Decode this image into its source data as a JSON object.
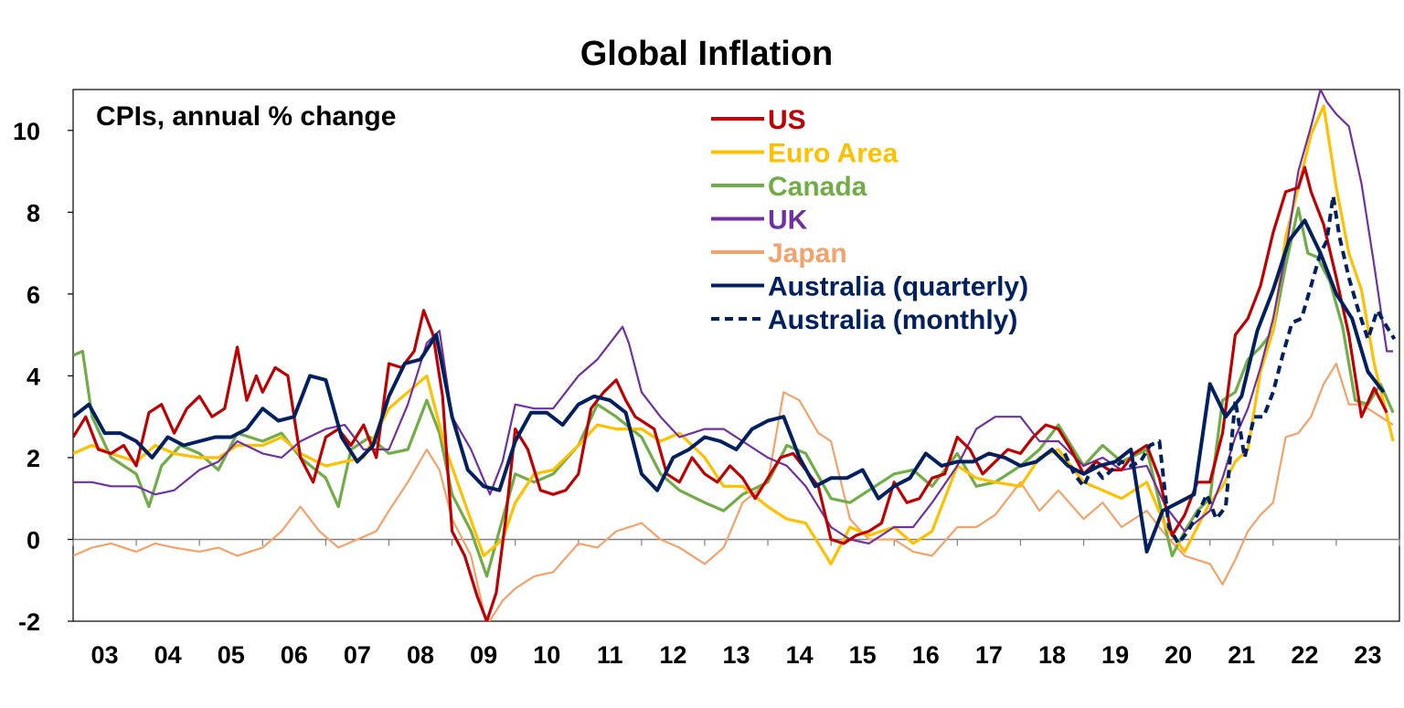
{
  "chart_data": {
    "type": "line",
    "title": "Global Inflation",
    "subtitle": "CPIs, annual % change",
    "xlabel": "",
    "ylabel": "",
    "xlim": [
      2003.0,
      2024.0
    ],
    "ylim": [
      -2,
      11
    ],
    "yticks": [
      -2,
      0,
      2,
      4,
      6,
      8,
      10
    ],
    "x_tick_labels": [
      "03",
      "04",
      "05",
      "06",
      "07",
      "08",
      "09",
      "10",
      "11",
      "12",
      "13",
      "14",
      "15",
      "16",
      "17",
      "18",
      "19",
      "20",
      "21",
      "22",
      "23"
    ],
    "x_tick_positions": [
      2003.5,
      2004.5,
      2005.5,
      2006.5,
      2007.5,
      2008.5,
      2009.5,
      2010.5,
      2011.5,
      2012.5,
      2013.5,
      2014.5,
      2015.5,
      2016.5,
      2017.5,
      2018.5,
      2019.5,
      2020.5,
      2021.5,
      2022.5,
      2023.5
    ],
    "zero_line": true,
    "grid": false,
    "legend_position": "top-center",
    "series": [
      {
        "name": "US",
        "color": "#C00000",
        "style": "solid",
        "x": [
          2003.0,
          2003.2,
          2003.4,
          2003.6,
          2003.8,
          2004.0,
          2004.2,
          2004.4,
          2004.6,
          2004.8,
          2005.0,
          2005.2,
          2005.4,
          2005.6,
          2005.75,
          2005.9,
          2006.0,
          2006.2,
          2006.4,
          2006.6,
          2006.8,
          2007.0,
          2007.2,
          2007.4,
          2007.6,
          2007.8,
          2008.0,
          2008.2,
          2008.4,
          2008.55,
          2008.7,
          2008.85,
          2009.0,
          2009.2,
          2009.4,
          2009.55,
          2009.7,
          2009.85,
          2010.0,
          2010.2,
          2010.4,
          2010.6,
          2010.8,
          2011.0,
          2011.2,
          2011.4,
          2011.6,
          2011.75,
          2011.9,
          2012.0,
          2012.2,
          2012.4,
          2012.6,
          2012.8,
          2013.0,
          2013.2,
          2013.4,
          2013.6,
          2013.8,
          2014.0,
          2014.2,
          2014.4,
          2014.6,
          2014.8,
          2015.0,
          2015.2,
          2015.4,
          2015.6,
          2015.8,
          2016.0,
          2016.2,
          2016.4,
          2016.6,
          2016.8,
          2017.0,
          2017.2,
          2017.4,
          2017.6,
          2017.8,
          2018.0,
          2018.2,
          2018.4,
          2018.6,
          2018.8,
          2019.0,
          2019.2,
          2019.4,
          2019.6,
          2019.8,
          2020.0,
          2020.2,
          2020.4,
          2020.6,
          2020.8,
          2021.0,
          2021.2,
          2021.4,
          2021.6,
          2021.8,
          2022.0,
          2022.2,
          2022.4,
          2022.5,
          2022.6,
          2022.8,
          2023.0,
          2023.2,
          2023.4,
          2023.6,
          2023.8
        ],
        "values": [
          2.5,
          3.0,
          2.2,
          2.1,
          2.3,
          1.8,
          3.1,
          3.3,
          2.6,
          3.2,
          3.5,
          3.0,
          3.2,
          4.7,
          3.4,
          4.0,
          3.6,
          4.2,
          4.0,
          2.0,
          1.4,
          2.5,
          2.7,
          2.3,
          2.8,
          2.0,
          4.3,
          4.2,
          4.6,
          5.6,
          5.0,
          3.5,
          0.2,
          -0.4,
          -1.4,
          -2.0,
          -1.3,
          0.5,
          2.7,
          2.2,
          1.2,
          1.1,
          1.2,
          1.6,
          3.2,
          3.6,
          3.9,
          3.4,
          3.0,
          2.9,
          2.7,
          1.6,
          1.4,
          2.0,
          1.6,
          1.4,
          1.8,
          1.5,
          1.0,
          1.5,
          2.0,
          2.1,
          1.7,
          1.3,
          0.0,
          -0.1,
          0.1,
          0.2,
          0.4,
          1.4,
          0.9,
          1.0,
          1.5,
          1.6,
          2.5,
          2.2,
          1.6,
          1.9,
          2.2,
          2.1,
          2.5,
          2.8,
          2.7,
          2.2,
          1.6,
          1.9,
          1.7,
          1.7,
          2.1,
          2.3,
          1.5,
          0.1,
          0.6,
          1.4,
          1.4,
          2.6,
          5.0,
          5.4,
          6.2,
          7.5,
          8.5,
          8.6,
          9.1,
          8.5,
          7.7,
          6.4,
          5.0,
          3.0,
          3.7,
          3.1
        ]
      },
      {
        "name": "Euro Area",
        "color": "#FFC000",
        "style": "solid",
        "x": [
          2003.0,
          2003.3,
          2003.6,
          2004.0,
          2004.3,
          2004.6,
          2005.0,
          2005.3,
          2005.6,
          2006.0,
          2006.3,
          2006.6,
          2007.0,
          2007.3,
          2007.6,
          2008.0,
          2008.3,
          2008.6,
          2008.9,
          2009.2,
          2009.5,
          2009.8,
          2010.0,
          2010.3,
          2010.6,
          2011.0,
          2011.3,
          2011.6,
          2012.0,
          2012.3,
          2012.6,
          2013.0,
          2013.3,
          2013.6,
          2014.0,
          2014.3,
          2014.6,
          2015.0,
          2015.3,
          2015.6,
          2016.0,
          2016.3,
          2016.6,
          2017.0,
          2017.3,
          2017.6,
          2018.0,
          2018.3,
          2018.6,
          2019.0,
          2019.3,
          2019.6,
          2020.0,
          2020.3,
          2020.6,
          2021.0,
          2021.2,
          2021.4,
          2021.6,
          2021.8,
          2022.0,
          2022.2,
          2022.4,
          2022.6,
          2022.8,
          2023.0,
          2023.2,
          2023.4,
          2023.6,
          2023.9
        ],
        "values": [
          2.1,
          2.3,
          2.1,
          1.9,
          2.3,
          2.1,
          2.0,
          2.0,
          2.3,
          2.3,
          2.5,
          2.1,
          1.8,
          1.9,
          2.0,
          3.2,
          3.6,
          4.0,
          2.2,
          0.9,
          -0.4,
          0.0,
          0.9,
          1.6,
          1.7,
          2.3,
          2.8,
          2.7,
          2.7,
          2.4,
          2.6,
          2.0,
          1.3,
          1.3,
          0.8,
          0.5,
          0.4,
          -0.6,
          0.3,
          0.1,
          0.3,
          -0.1,
          0.2,
          1.8,
          1.5,
          1.4,
          1.3,
          2.0,
          2.2,
          1.4,
          1.2,
          1.0,
          1.4,
          0.3,
          -0.3,
          0.9,
          1.3,
          1.9,
          2.2,
          4.1,
          5.1,
          7.4,
          8.6,
          9.9,
          10.6,
          8.6,
          7.0,
          6.1,
          4.3,
          2.4
        ]
      },
      {
        "name": "Canada",
        "color": "#70AD47",
        "style": "solid",
        "x": [
          2003.0,
          2003.15,
          2003.3,
          2003.6,
          2004.0,
          2004.2,
          2004.4,
          2004.7,
          2005.0,
          2005.3,
          2005.6,
          2006.0,
          2006.3,
          2006.6,
          2007.0,
          2007.2,
          2007.4,
          2007.7,
          2008.0,
          2008.3,
          2008.6,
          2008.8,
          2009.0,
          2009.3,
          2009.55,
          2009.8,
          2010.0,
          2010.3,
          2010.6,
          2011.0,
          2011.3,
          2011.6,
          2012.0,
          2012.3,
          2012.6,
          2013.0,
          2013.3,
          2013.6,
          2014.0,
          2014.3,
          2014.6,
          2015.0,
          2015.3,
          2015.6,
          2016.0,
          2016.3,
          2016.6,
          2017.0,
          2017.3,
          2017.6,
          2018.0,
          2018.3,
          2018.6,
          2019.0,
          2019.3,
          2019.6,
          2020.0,
          2020.2,
          2020.4,
          2020.6,
          2020.8,
          2021.0,
          2021.2,
          2021.4,
          2021.6,
          2021.8,
          2022.0,
          2022.2,
          2022.4,
          2022.55,
          2022.7,
          2022.9,
          2023.1,
          2023.3,
          2023.5,
          2023.7,
          2023.9
        ],
        "values": [
          4.5,
          4.6,
          3.0,
          2.0,
          1.6,
          0.8,
          1.8,
          2.3,
          2.1,
          1.7,
          2.6,
          2.4,
          2.6,
          2.0,
          1.5,
          0.8,
          2.2,
          2.5,
          2.1,
          2.2,
          3.4,
          2.6,
          1.1,
          0.2,
          -0.9,
          0.5,
          1.6,
          1.4,
          1.6,
          2.3,
          3.3,
          3.0,
          2.5,
          1.6,
          1.2,
          0.9,
          0.7,
          1.1,
          1.4,
          2.3,
          2.1,
          1.0,
          0.9,
          1.2,
          1.6,
          1.7,
          1.3,
          2.1,
          1.3,
          1.4,
          1.8,
          2.2,
          2.8,
          1.8,
          2.3,
          1.9,
          2.2,
          0.9,
          -0.4,
          0.2,
          0.7,
          1.0,
          3.4,
          3.6,
          4.4,
          4.7,
          5.1,
          6.7,
          8.1,
          7.0,
          6.9,
          6.3,
          5.2,
          3.4,
          3.3,
          3.8,
          3.1
        ]
      },
      {
        "name": "UK",
        "color": "#7030A0",
        "style": "solid",
        "x": [
          2003.0,
          2003.3,
          2003.6,
          2004.0,
          2004.3,
          2004.6,
          2005.0,
          2005.3,
          2005.6,
          2006.0,
          2006.3,
          2006.6,
          2007.0,
          2007.3,
          2007.6,
          2008.0,
          2008.3,
          2008.6,
          2008.8,
          2009.0,
          2009.3,
          2009.6,
          2009.8,
          2010.0,
          2010.3,
          2010.6,
          2011.0,
          2011.3,
          2011.5,
          2011.7,
          2011.8,
          2012.0,
          2012.3,
          2012.6,
          2013.0,
          2013.3,
          2013.6,
          2014.0,
          2014.3,
          2014.6,
          2015.0,
          2015.3,
          2015.6,
          2016.0,
          2016.3,
          2016.6,
          2017.0,
          2017.3,
          2017.6,
          2018.0,
          2018.3,
          2018.6,
          2019.0,
          2019.3,
          2019.6,
          2020.0,
          2020.3,
          2020.6,
          2021.0,
          2021.2,
          2021.4,
          2021.6,
          2021.8,
          2022.0,
          2022.2,
          2022.4,
          2022.6,
          2022.75,
          2022.85,
          2023.0,
          2023.2,
          2023.4,
          2023.6,
          2023.8,
          2023.9
        ],
        "values": [
          1.4,
          1.4,
          1.3,
          1.3,
          1.1,
          1.2,
          1.7,
          1.9,
          2.4,
          2.1,
          2.0,
          2.4,
          2.7,
          2.8,
          2.2,
          2.2,
          3.3,
          4.8,
          5.1,
          3.0,
          2.2,
          1.1,
          1.9,
          3.3,
          3.2,
          3.2,
          4.0,
          4.4,
          4.8,
          5.2,
          4.8,
          3.6,
          3.0,
          2.5,
          2.7,
          2.7,
          2.4,
          2.0,
          1.8,
          1.3,
          0.3,
          0.0,
          -0.1,
          0.3,
          0.3,
          0.9,
          1.8,
          2.7,
          3.0,
          3.0,
          2.4,
          2.4,
          1.8,
          2.0,
          1.7,
          1.8,
          0.8,
          0.2,
          0.7,
          1.5,
          2.5,
          3.2,
          4.2,
          5.4,
          7.0,
          9.0,
          10.1,
          11.0,
          10.7,
          10.4,
          10.1,
          8.7,
          6.7,
          4.6,
          4.6
        ]
      },
      {
        "name": "Japan",
        "color": "#F4A26A",
        "style": "solid",
        "x": [
          2003.0,
          2003.3,
          2003.6,
          2004.0,
          2004.3,
          2004.6,
          2005.0,
          2005.3,
          2005.6,
          2006.0,
          2006.3,
          2006.6,
          2006.9,
          2007.2,
          2007.5,
          2007.8,
          2008.0,
          2008.3,
          2008.6,
          2008.8,
          2009.0,
          2009.3,
          2009.55,
          2009.8,
          2010.0,
          2010.3,
          2010.6,
          2011.0,
          2011.3,
          2011.6,
          2012.0,
          2012.3,
          2012.6,
          2013.0,
          2013.3,
          2013.6,
          2014.0,
          2014.25,
          2014.5,
          2014.8,
          2015.0,
          2015.3,
          2015.6,
          2016.0,
          2016.3,
          2016.6,
          2017.0,
          2017.3,
          2017.6,
          2018.0,
          2018.3,
          2018.6,
          2019.0,
          2019.3,
          2019.6,
          2020.0,
          2020.3,
          2020.6,
          2021.0,
          2021.2,
          2021.4,
          2021.6,
          2021.8,
          2022.0,
          2022.2,
          2022.4,
          2022.6,
          2022.8,
          2023.0,
          2023.2,
          2023.4,
          2023.6,
          2023.9
        ],
        "values": [
          -0.4,
          -0.2,
          -0.1,
          -0.3,
          -0.1,
          -0.2,
          -0.3,
          -0.2,
          -0.4,
          -0.2,
          0.2,
          0.8,
          0.2,
          -0.2,
          0.0,
          0.2,
          0.7,
          1.4,
          2.2,
          1.7,
          0.5,
          -0.4,
          -2.1,
          -1.5,
          -1.2,
          -0.9,
          -0.8,
          -0.1,
          -0.2,
          0.2,
          0.4,
          0.0,
          -0.2,
          -0.6,
          -0.2,
          0.9,
          1.4,
          3.6,
          3.4,
          2.6,
          2.4,
          0.5,
          0.0,
          0.0,
          -0.3,
          -0.4,
          0.3,
          0.3,
          0.6,
          1.4,
          0.7,
          1.2,
          0.5,
          0.9,
          0.3,
          0.7,
          0.1,
          -0.4,
          -0.6,
          -1.1,
          -0.5,
          0.2,
          0.6,
          0.9,
          2.5,
          2.6,
          3.0,
          3.8,
          4.3,
          3.3,
          3.3,
          3.1,
          2.8
        ]
      },
      {
        "name": "Australia (quarterly)",
        "color": "#002060",
        "style": "solid",
        "x": [
          2003.0,
          2003.25,
          2003.5,
          2003.75,
          2004.0,
          2004.25,
          2004.5,
          2004.75,
          2005.0,
          2005.25,
          2005.5,
          2005.75,
          2006.0,
          2006.25,
          2006.5,
          2006.75,
          2007.0,
          2007.25,
          2007.5,
          2007.75,
          2008.0,
          2008.25,
          2008.5,
          2008.75,
          2009.0,
          2009.25,
          2009.5,
          2009.75,
          2010.0,
          2010.25,
          2010.5,
          2010.75,
          2011.0,
          2011.25,
          2011.5,
          2011.75,
          2012.0,
          2012.25,
          2012.5,
          2012.75,
          2013.0,
          2013.25,
          2013.5,
          2013.75,
          2014.0,
          2014.25,
          2014.5,
          2014.75,
          2015.0,
          2015.25,
          2015.5,
          2015.75,
          2016.0,
          2016.25,
          2016.5,
          2016.75,
          2017.0,
          2017.25,
          2017.5,
          2017.75,
          2018.0,
          2018.25,
          2018.5,
          2018.75,
          2019.0,
          2019.25,
          2019.5,
          2019.75,
          2020.0,
          2020.25,
          2020.5,
          2020.75,
          2021.0,
          2021.25,
          2021.5,
          2021.75,
          2022.0,
          2022.25,
          2022.5,
          2022.75,
          2023.0,
          2023.25,
          2023.5,
          2023.75
        ],
        "values": [
          3.0,
          3.3,
          2.6,
          2.6,
          2.4,
          2.0,
          2.5,
          2.3,
          2.4,
          2.5,
          2.5,
          2.7,
          3.2,
          2.9,
          3.0,
          4.0,
          3.9,
          2.5,
          1.9,
          2.3,
          3.5,
          4.3,
          4.4,
          5.0,
          3.0,
          1.7,
          1.3,
          1.2,
          2.4,
          3.1,
          3.1,
          2.8,
          3.3,
          3.5,
          3.4,
          3.1,
          1.6,
          1.2,
          2.0,
          2.2,
          2.5,
          2.4,
          2.2,
          2.7,
          2.9,
          3.0,
          2.0,
          1.3,
          1.5,
          1.5,
          1.7,
          1.0,
          1.3,
          1.5,
          2.1,
          1.8,
          1.9,
          1.9,
          2.1,
          2.0,
          1.8,
          1.9,
          2.2,
          1.8,
          1.6,
          1.8,
          1.9,
          2.2,
          -0.3,
          0.7,
          0.9,
          1.1,
          3.8,
          3.0,
          3.5,
          5.1,
          6.1,
          7.3,
          7.8,
          7.0,
          6.0,
          5.4,
          4.1,
          3.6
        ]
      },
      {
        "name": "Australia (monthly)",
        "color": "#002060",
        "style": "dashed",
        "x": [
          2018.7,
          2018.85,
          2019.0,
          2019.15,
          2019.3,
          2019.45,
          2019.6,
          2019.75,
          2019.9,
          2020.05,
          2020.2,
          2020.35,
          2020.5,
          2020.65,
          2020.8,
          2020.95,
          2021.1,
          2021.25,
          2021.4,
          2021.55,
          2021.7,
          2021.85,
          2022.0,
          2022.15,
          2022.3,
          2022.45,
          2022.6,
          2022.75,
          2022.85,
          2022.95,
          2023.05,
          2023.2,
          2023.35,
          2023.5,
          2023.65,
          2023.8,
          2023.92
        ],
        "values": [
          2.1,
          1.6,
          1.3,
          1.8,
          1.5,
          1.7,
          1.9,
          1.8,
          1.9,
          2.3,
          2.4,
          0.3,
          -0.1,
          0.2,
          0.6,
          1.1,
          0.5,
          0.8,
          3.4,
          2.0,
          3.0,
          3.0,
          3.6,
          4.5,
          5.3,
          5.4,
          6.2,
          7.0,
          7.3,
          8.4,
          7.4,
          6.4,
          5.6,
          4.9,
          5.6,
          5.2,
          4.9
        ]
      }
    ]
  }
}
